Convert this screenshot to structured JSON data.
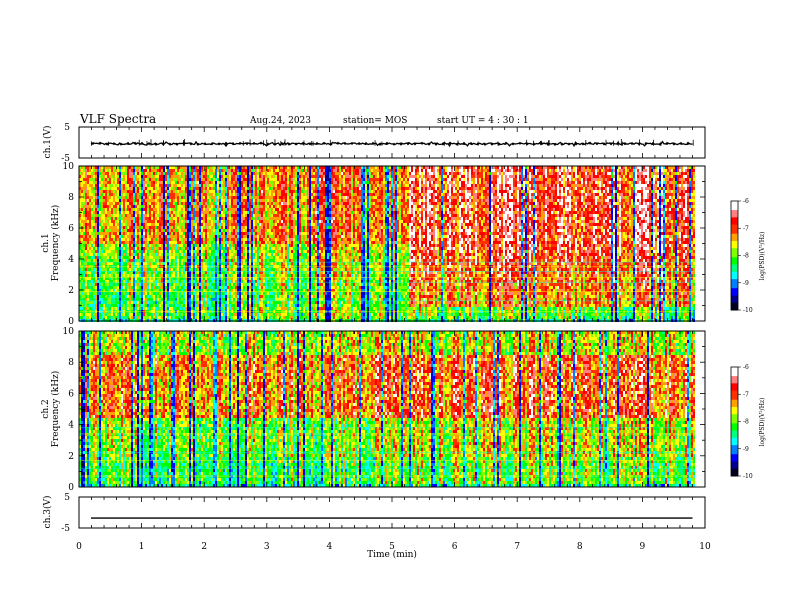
{
  "header": {
    "title": "VLF Spectra",
    "date": "Aug.24, 2023",
    "station": "station= MOS",
    "start_ut": "start UT =  4 : 30 : 1"
  },
  "chart_data": {
    "type": "heatmap",
    "x_axis": {
      "label": "Time (min)",
      "range": [
        0,
        10
      ],
      "ticks": [
        0,
        1,
        2,
        3,
        4,
        5,
        6,
        7,
        8,
        9,
        10
      ],
      "minor_step": 0.2
    },
    "panels": [
      {
        "id": "ch1_volt",
        "type": "line",
        "ylabel": "ch.1(V)",
        "ylim": [
          -5,
          5
        ],
        "ytick_labels": [
          "5",
          "-5"
        ],
        "x_end": 9.82,
        "level": -0.4,
        "noise": 0.25,
        "marker": "diamond"
      },
      {
        "id": "ch1_spec",
        "type": "heatmap",
        "ylabel_top": "ch.1",
        "ylabel": "Frequency (kHz)",
        "ylim": [
          0,
          10
        ],
        "ytick_labels": [
          "0",
          "2",
          "4",
          "6",
          "8",
          "10"
        ],
        "x_end": 9.82,
        "colorbar": {
          "label": "log(PSD)(V²/Hz)",
          "range": [
            -10,
            -6
          ],
          "ticks": [
            "-6",
            "-7",
            "-8",
            "-9",
            "-10"
          ]
        },
        "horizontal_lines_khz": [
          0.6,
          1.3,
          1.9,
          2.5,
          2.8,
          3.2,
          3.5,
          3.8
        ],
        "quiet_interval_min": [
          0,
          5.25
        ],
        "active_interval_min": [
          5.25,
          9.82
        ]
      },
      {
        "id": "ch2_spec",
        "type": "heatmap",
        "ylabel_top": "ch.2",
        "ylabel": "Frequency (kHz)",
        "ylim": [
          0,
          10
        ],
        "ytick_labels": [
          "0",
          "2",
          "4",
          "6",
          "8",
          "10"
        ],
        "x_end": 9.82,
        "colorbar": {
          "label": "log(PSD)(V²/Hz)",
          "range": [
            -10,
            -6
          ],
          "ticks": [
            "-6",
            "-7",
            "-8",
            "-9",
            "-10"
          ]
        },
        "horizontal_lines_khz": [
          0.7,
          1.2,
          1.7,
          2.2,
          3.4,
          3.8
        ],
        "quiet_interval_min": [
          0,
          5.25
        ],
        "active_interval_min": [
          5.25,
          9.82
        ]
      },
      {
        "id": "ch3_volt",
        "type": "line",
        "ylabel": "ch.3(V)",
        "ylim": [
          -5,
          5
        ],
        "ytick_labels": [
          "5",
          "-5"
        ],
        "x_end": 9.82,
        "level": -1.8,
        "noise": 0.0,
        "marker": "none"
      }
    ],
    "colormap": [
      "#000020",
      "#00008b",
      "#0000ff",
      "#0080ff",
      "#00ffff",
      "#00ff80",
      "#00ff00",
      "#80ff00",
      "#ffff00",
      "#ffa000",
      "#ff3000",
      "#ff0000",
      "#ff8080",
      "#ffffff"
    ]
  }
}
